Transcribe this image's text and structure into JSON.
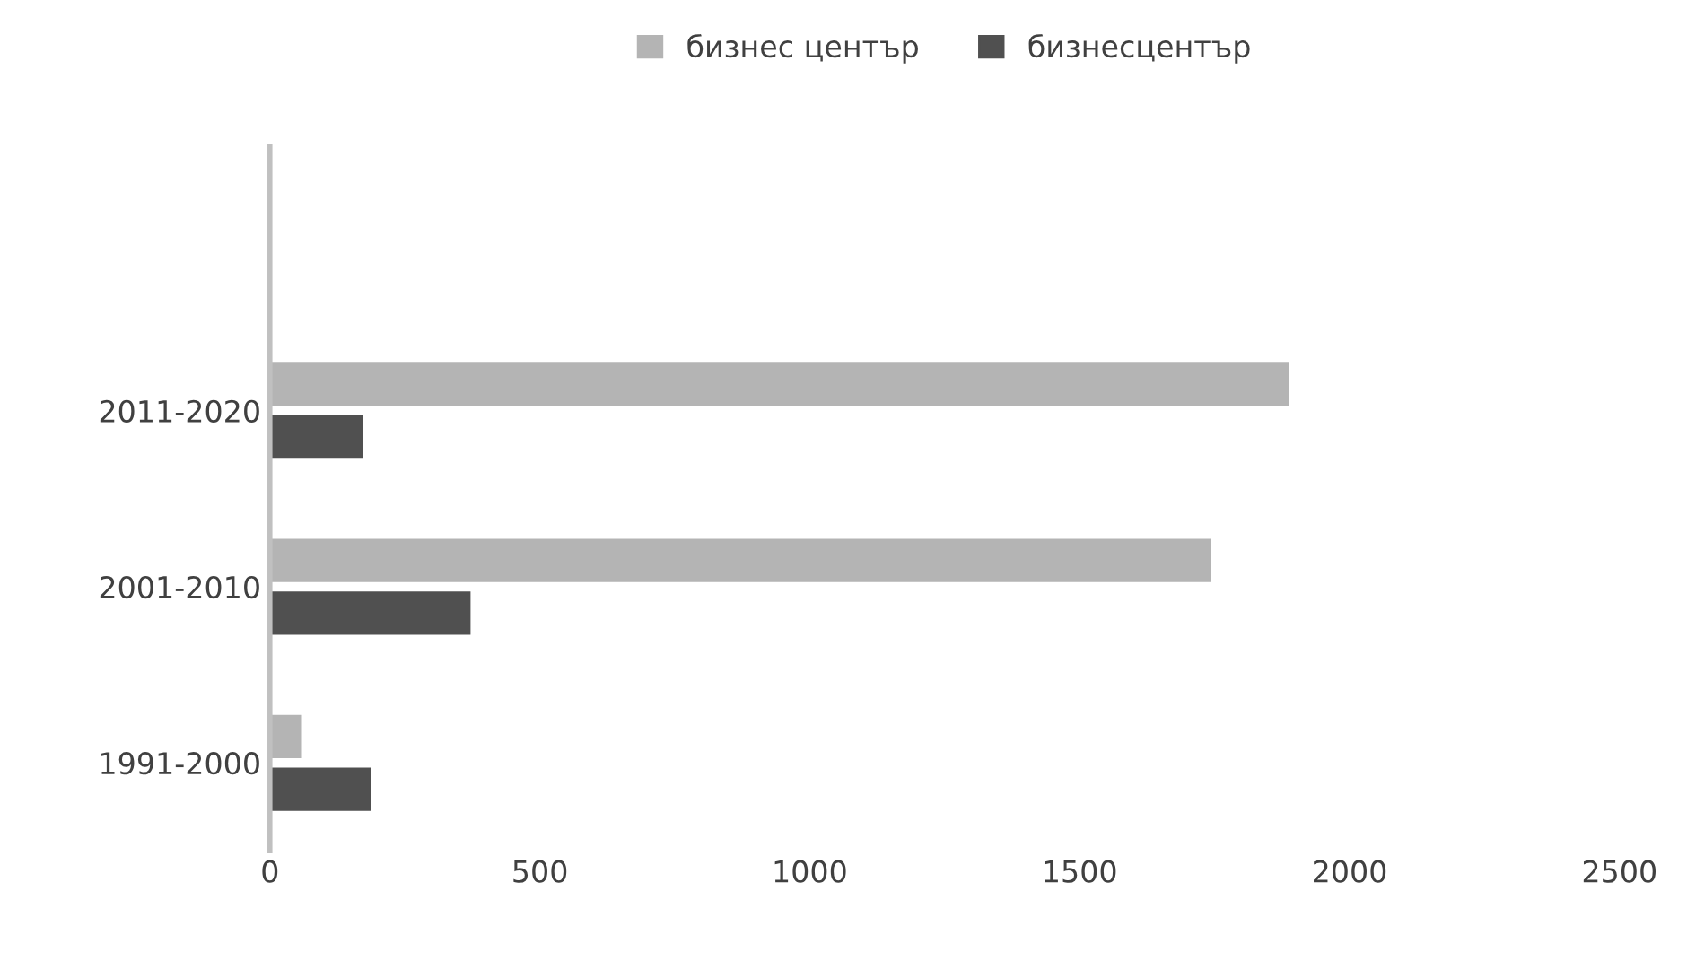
{
  "chart_data": {
    "type": "bar",
    "orientation": "horizontal",
    "categories": [
      null,
      "2011-2020",
      "2001-2010",
      "1991-2000"
    ],
    "series": [
      {
        "name": "бизнес център",
        "color": "#b4b4b4",
        "values": [
          null,
          1890,
          1745,
          60
        ]
      },
      {
        "name": "бизнесцентър",
        "color": "#505050",
        "values": [
          null,
          175,
          374,
          189
        ]
      }
    ],
    "xlim": [
      0,
      2500
    ],
    "xticks": [
      0,
      500,
      1000,
      1500,
      2000,
      2500
    ],
    "grid": false,
    "legend": "top"
  }
}
